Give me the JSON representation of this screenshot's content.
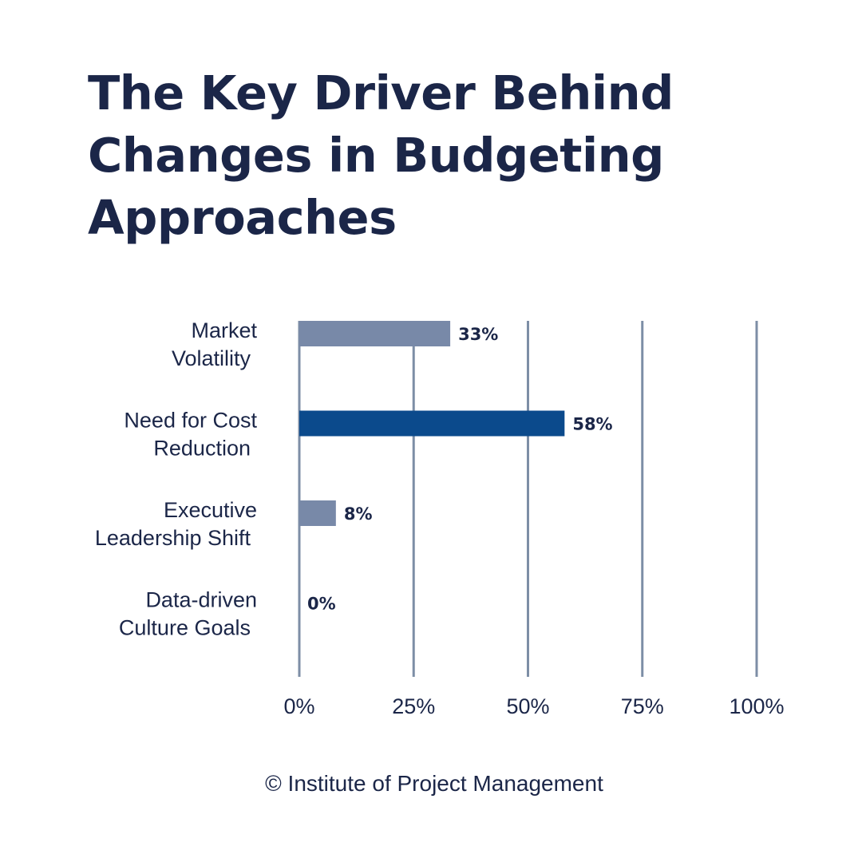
{
  "chart_data": {
    "type": "bar",
    "orientation": "horizontal",
    "title": "The Key Driver Behind Changes in Budgeting Approaches",
    "categories": [
      [
        "Market",
        "Volatility"
      ],
      [
        "Need for Cost",
        "Reduction"
      ],
      [
        "Executive",
        "Leadership Shift"
      ],
      [
        "Data-driven",
        "Culture Goals"
      ]
    ],
    "values": [
      33,
      58,
      8,
      0
    ],
    "value_labels": [
      "33%",
      "58%",
      "8%",
      "0%"
    ],
    "xlim": [
      0,
      100
    ],
    "xticks": [
      0,
      25,
      50,
      75,
      100
    ],
    "xtick_labels": [
      "0%",
      "25%",
      "50%",
      "75%",
      "100%"
    ],
    "grid": true,
    "colors": {
      "bar_default": "#7889a8",
      "bar_highlight": "#0b4a8c",
      "highlight_index": 1,
      "grid": "#7d8ea6",
      "text": "#1b2648"
    }
  },
  "footer": {
    "copyright": "© Institute of Project Management"
  }
}
